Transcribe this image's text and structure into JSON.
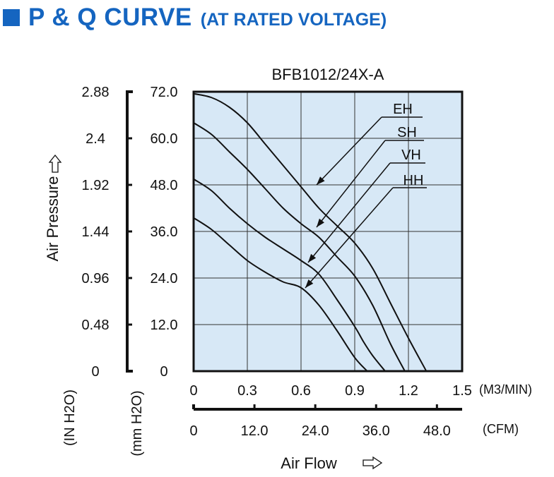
{
  "header": {
    "title": "P & Q CURVE",
    "subtitle": "(AT RATED VOLTAGE)",
    "accent_color": "#1565c0"
  },
  "chart_data": {
    "type": "line",
    "title": "BFB1012/24X-A",
    "xlabel": "Air Flow",
    "ylabel": "Air Pressure",
    "x_unit": "(M3/MIN)",
    "x_unit_secondary": "(CFM)",
    "y_unit": "(mm H2O)",
    "y_unit_secondary": "(IN H2O)",
    "xlim": [
      0,
      1.5
    ],
    "ylim": [
      0,
      72
    ],
    "x_ticks": [
      "0",
      "0.3",
      "0.6",
      "0.9",
      "1.2",
      "1.5"
    ],
    "x_ticks_secondary": [
      "0",
      "12.0",
      "24.0",
      "36.0",
      "48.0"
    ],
    "y_ticks": [
      "0",
      "12.0",
      "24.0",
      "36.0",
      "48.0",
      "60.0",
      "72.0"
    ],
    "y_ticks_secondary": [
      "0",
      "0.48",
      "0.96",
      "1.44",
      "1.92",
      "2.4",
      "2.88"
    ],
    "grid": true,
    "plot_background": "#d7e8f6",
    "series": [
      {
        "name": "EH",
        "x": [
          0,
          0.1,
          0.2,
          0.3,
          0.4,
          0.5,
          0.6,
          0.7,
          0.8,
          0.9,
          1.0,
          1.1,
          1.2,
          1.3
        ],
        "y": [
          71.5,
          70.5,
          68.0,
          64.0,
          58.5,
          53.0,
          47.5,
          42.0,
          37.5,
          33.0,
          26.5,
          17.5,
          8.5,
          0
        ]
      },
      {
        "name": "SH",
        "x": [
          0,
          0.1,
          0.2,
          0.3,
          0.4,
          0.5,
          0.6,
          0.7,
          0.8,
          0.9,
          1.0,
          1.1,
          1.18
        ],
        "y": [
          64.0,
          61.0,
          56.5,
          52.0,
          47.0,
          42.0,
          38.0,
          34.5,
          29.5,
          24.5,
          17.0,
          7.0,
          0
        ]
      },
      {
        "name": "VH",
        "x": [
          0,
          0.1,
          0.2,
          0.3,
          0.4,
          0.5,
          0.6,
          0.7,
          0.8,
          0.9,
          0.95,
          1.0,
          1.07
        ],
        "y": [
          49.5,
          46.5,
          42.0,
          38.0,
          34.5,
          31.5,
          28.5,
          25.0,
          18.5,
          11.5,
          7.5,
          4.0,
          0
        ]
      },
      {
        "name": "HH",
        "x": [
          0,
          0.1,
          0.2,
          0.3,
          0.4,
          0.5,
          0.6,
          0.7,
          0.8,
          0.9,
          0.97
        ],
        "y": [
          39.5,
          36.5,
          32.5,
          28.5,
          25.5,
          23.0,
          21.5,
          17.0,
          10.5,
          3.5,
          0
        ]
      }
    ]
  }
}
